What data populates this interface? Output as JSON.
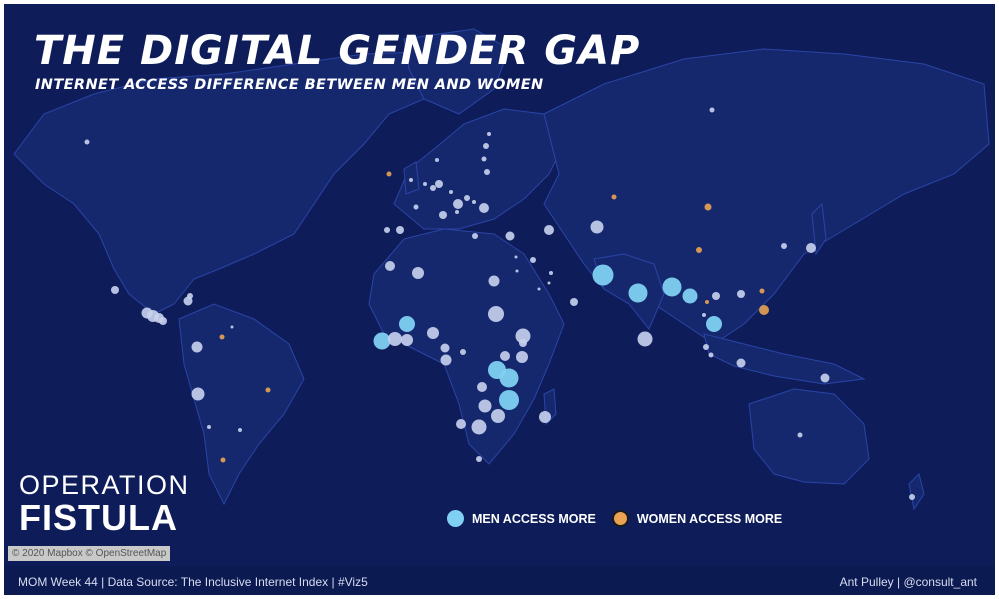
{
  "header": {
    "title": "THE DIGITAL GENDER GAP",
    "subtitle": "INTERNET ACCESS DIFFERENCE BETWEEN MEN AND WOMEN"
  },
  "logo": {
    "line1": "OPERATION",
    "line2": "FISTULA"
  },
  "legend": {
    "men_label": "MEN ACCESS MORE",
    "women_label": "WOMEN ACCESS MORE",
    "men_color": "#7fd0f2",
    "women_color": "#e9a352"
  },
  "attribution": "© 2020 Mapbox © OpenStreetMap",
  "footer": {
    "source": "MOM Week 44 | Data Source: The Inclusive Internet Index | #Viz5",
    "author": "Ant Pulley | @consult_ant"
  },
  "colors": {
    "ocean": "#0e1d5a",
    "land": "#15286e",
    "borders": "#2a44a6",
    "men_small": "#c9d3ee",
    "men_large": "#7fd0f2",
    "women": "#e9a352"
  }
}
